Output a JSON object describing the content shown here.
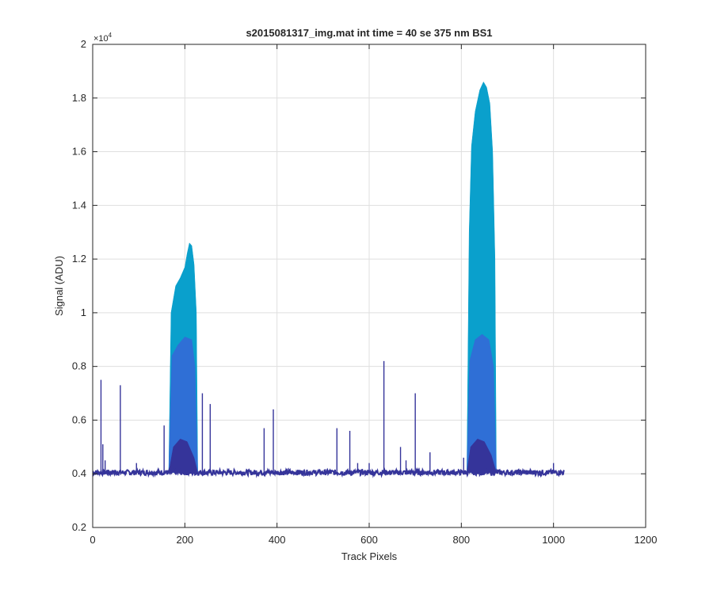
{
  "chart_data": {
    "type": "area",
    "title": "s2015081317_img.mat int time = 40 se  375 nm BS1",
    "xlabel": "Track Pixels",
    "ylabel": "Signal (ADU)",
    "y_multiplier_label": "×10",
    "y_multiplier_exponent": "4",
    "xlim": [
      0,
      1200
    ],
    "ylim": [
      0.2,
      2.0
    ],
    "y_scale_factor": 10000,
    "grid": true,
    "xticks": [
      "0",
      "200",
      "400",
      "600",
      "800",
      "1000",
      "1200"
    ],
    "yticks": [
      "0.2",
      "0.4",
      "0.6",
      "0.8",
      "1",
      "1.2",
      "1.4",
      "1.6",
      "1.8",
      "2"
    ],
    "baseline": 0.405,
    "x_extent": [
      0,
      1023
    ],
    "series": [
      {
        "color": "#0aa0cc",
        "bands": [
          {
            "x": [
              165,
              170,
              180,
              190,
              200,
              205,
              210,
              215,
              220,
              225,
              228
            ],
            "y": [
              0.405,
              1.0,
              1.1,
              1.13,
              1.17,
              1.22,
              1.26,
              1.25,
              1.18,
              1.0,
              0.405
            ]
          },
          {
            "x": [
              812,
              817,
              822,
              830,
              840,
              848,
              855,
              862,
              868,
              873,
              876
            ],
            "y": [
              0.405,
              1.3,
              1.62,
              1.75,
              1.83,
              1.86,
              1.84,
              1.78,
              1.6,
              1.2,
              0.405
            ]
          }
        ]
      },
      {
        "color": "#2f6fd6",
        "bands": [
          {
            "x": [
              165,
              172,
              185,
              200,
              215,
              222,
              228
            ],
            "y": [
              0.405,
              0.84,
              0.88,
              0.91,
              0.9,
              0.8,
              0.405
            ]
          },
          {
            "x": [
              812,
              818,
              830,
              845,
              860,
              870,
              876
            ],
            "y": [
              0.405,
              0.82,
              0.9,
              0.92,
              0.9,
              0.8,
              0.405
            ]
          }
        ]
      },
      {
        "color": "#35349a",
        "bands": [
          {
            "x": [
              165,
              175,
              190,
              205,
              220,
              228
            ],
            "y": [
              0.405,
              0.5,
              0.53,
              0.52,
              0.46,
              0.405
            ]
          },
          {
            "x": [
              812,
              820,
              835,
              850,
              865,
              876
            ],
            "y": [
              0.405,
              0.5,
              0.53,
              0.52,
              0.47,
              0.405
            ]
          }
        ]
      }
    ],
    "spikes": [
      {
        "x": 18,
        "y": 0.75
      },
      {
        "x": 22,
        "y": 0.51
      },
      {
        "x": 27,
        "y": 0.45
      },
      {
        "x": 60,
        "y": 0.73
      },
      {
        "x": 95,
        "y": 0.44
      },
      {
        "x": 155,
        "y": 0.58
      },
      {
        "x": 238,
        "y": 0.7
      },
      {
        "x": 255,
        "y": 0.66
      },
      {
        "x": 372,
        "y": 0.57
      },
      {
        "x": 392,
        "y": 0.64
      },
      {
        "x": 530,
        "y": 0.57
      },
      {
        "x": 558,
        "y": 0.56
      },
      {
        "x": 575,
        "y": 0.44
      },
      {
        "x": 600,
        "y": 0.44
      },
      {
        "x": 632,
        "y": 0.82
      },
      {
        "x": 668,
        "y": 0.5
      },
      {
        "x": 680,
        "y": 0.45
      },
      {
        "x": 700,
        "y": 0.7
      },
      {
        "x": 732,
        "y": 0.48
      },
      {
        "x": 805,
        "y": 0.46
      },
      {
        "x": 1000,
        "y": 0.44
      }
    ],
    "colors": {
      "line": "#35349a",
      "axis": "#262626",
      "grid": "#dfdfdf"
    }
  }
}
